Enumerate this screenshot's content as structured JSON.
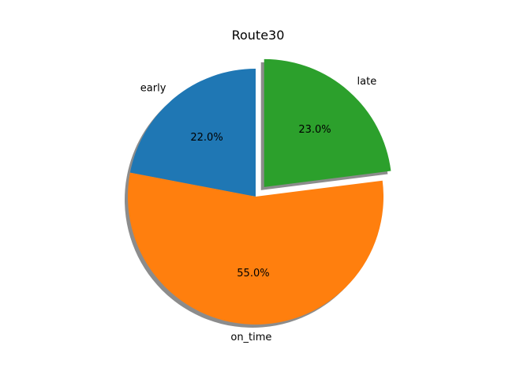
{
  "chart_data": {
    "type": "pie",
    "title": "Route30",
    "categories": [
      "early",
      "on_time",
      "late"
    ],
    "values": [
      22.0,
      55.0,
      23.0
    ],
    "percent_labels": [
      "22.0%",
      "55.0%",
      "23.0%"
    ],
    "colors": [
      "#1f77b4",
      "#ff7f0e",
      "#2ca02c"
    ],
    "explode": [
      0,
      0,
      0.1
    ],
    "shadow": true,
    "start_angle_deg": 90,
    "direction": "counterclockwise"
  }
}
